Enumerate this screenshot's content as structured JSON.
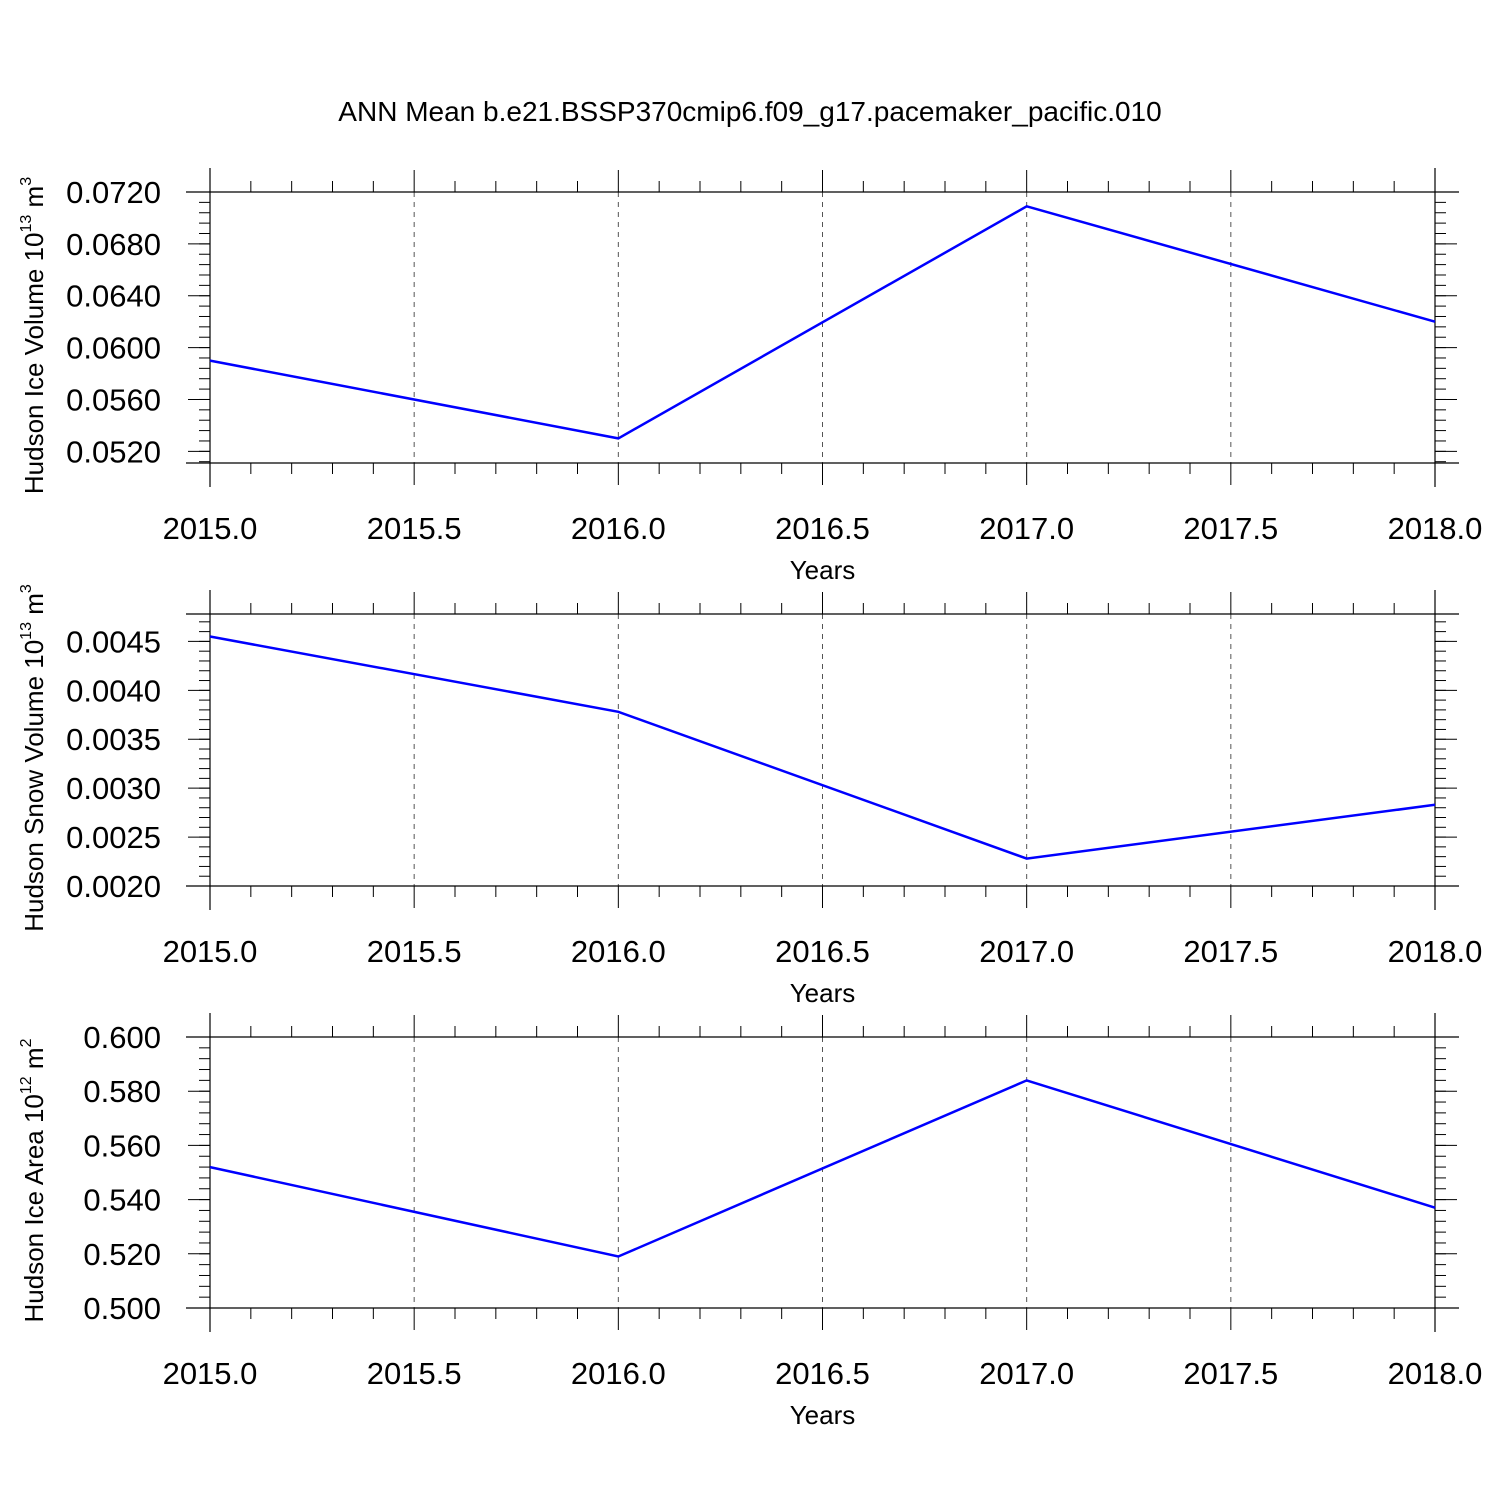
{
  "figure_title": "ANN Mean b.e21.BSSP370cmip6.f09_g17.pacemaker_pacific.010",
  "line_color": "#0000ff",
  "chart_data": [
    {
      "type": "line",
      "ylabel": "Hudson Ice Volume 10",
      "ylabel_exp": "13",
      "ylabel_unit": " m",
      "ylabel_unit_exp": "3",
      "xlabel": "Years",
      "x": [
        2015,
        2016,
        2017,
        2018
      ],
      "values": [
        0.059,
        0.053,
        0.0709,
        0.062
      ],
      "xlim": [
        2015,
        2018
      ],
      "ylim": [
        0.0511,
        0.072
      ],
      "yticks": [
        0.052,
        0.056,
        0.06,
        0.064,
        0.068,
        0.072
      ],
      "ytick_labels": [
        "0.0520",
        "0.0560",
        "0.0600",
        "0.0640",
        "0.0680",
        "0.0720"
      ],
      "yminor_step": 0.0008,
      "xticks": [
        2015,
        2015.5,
        2016,
        2016.5,
        2017,
        2017.5,
        2018
      ],
      "xtick_labels": [
        "2015.0",
        "2015.5",
        "2016.0",
        "2016.5",
        "2017.0",
        "2017.5",
        "2018.0"
      ],
      "grid": "vertical dashed"
    },
    {
      "type": "line",
      "ylabel": "Hudson Snow Volume 10",
      "ylabel_exp": "13",
      "ylabel_unit": " m",
      "ylabel_unit_exp": "3",
      "xlabel": "Years",
      "x": [
        2015,
        2016,
        2017,
        2018
      ],
      "values": [
        0.00455,
        0.00378,
        0.00228,
        0.00283
      ],
      "xlim": [
        2015,
        2018
      ],
      "ylim": [
        0.002,
        0.00478
      ],
      "yticks": [
        0.002,
        0.0025,
        0.003,
        0.0035,
        0.004,
        0.0045
      ],
      "ytick_labels": [
        "0.0020",
        "0.0025",
        "0.0030",
        "0.0035",
        "0.0040",
        "0.0045"
      ],
      "yminor_step": 0.0001,
      "xticks": [
        2015,
        2015.5,
        2016,
        2016.5,
        2017,
        2017.5,
        2018
      ],
      "xtick_labels": [
        "2015.0",
        "2015.5",
        "2016.0",
        "2016.5",
        "2017.0",
        "2017.5",
        "2018.0"
      ],
      "grid": "vertical dashed"
    },
    {
      "type": "line",
      "ylabel": "Hudson Ice Area 10",
      "ylabel_exp": "12",
      "ylabel_unit": " m",
      "ylabel_unit_exp": "2",
      "xlabel": "Years",
      "x": [
        2015,
        2016,
        2017,
        2018
      ],
      "values": [
        0.552,
        0.519,
        0.584,
        0.537
      ],
      "xlim": [
        2015,
        2018
      ],
      "ylim": [
        0.5,
        0.6
      ],
      "yticks": [
        0.5,
        0.52,
        0.54,
        0.56,
        0.58,
        0.6
      ],
      "ytick_labels": [
        "0.500",
        "0.520",
        "0.540",
        "0.560",
        "0.580",
        "0.600"
      ],
      "yminor_step": 0.004,
      "xticks": [
        2015,
        2015.5,
        2016,
        2016.5,
        2017,
        2017.5,
        2018
      ],
      "xtick_labels": [
        "2015.0",
        "2015.5",
        "2016.0",
        "2016.5",
        "2017.0",
        "2017.5",
        "2018.0"
      ],
      "grid": "vertical dashed"
    }
  ]
}
